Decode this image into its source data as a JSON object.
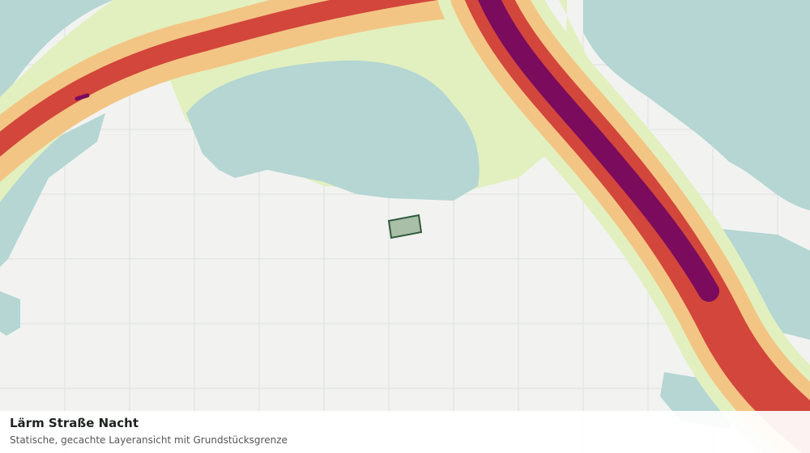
{
  "footer": {
    "title": "Lärm Straße Nacht",
    "subtitle": "Statische, gecachte Layeransicht mit Grundstücksgrenze"
  }
}
